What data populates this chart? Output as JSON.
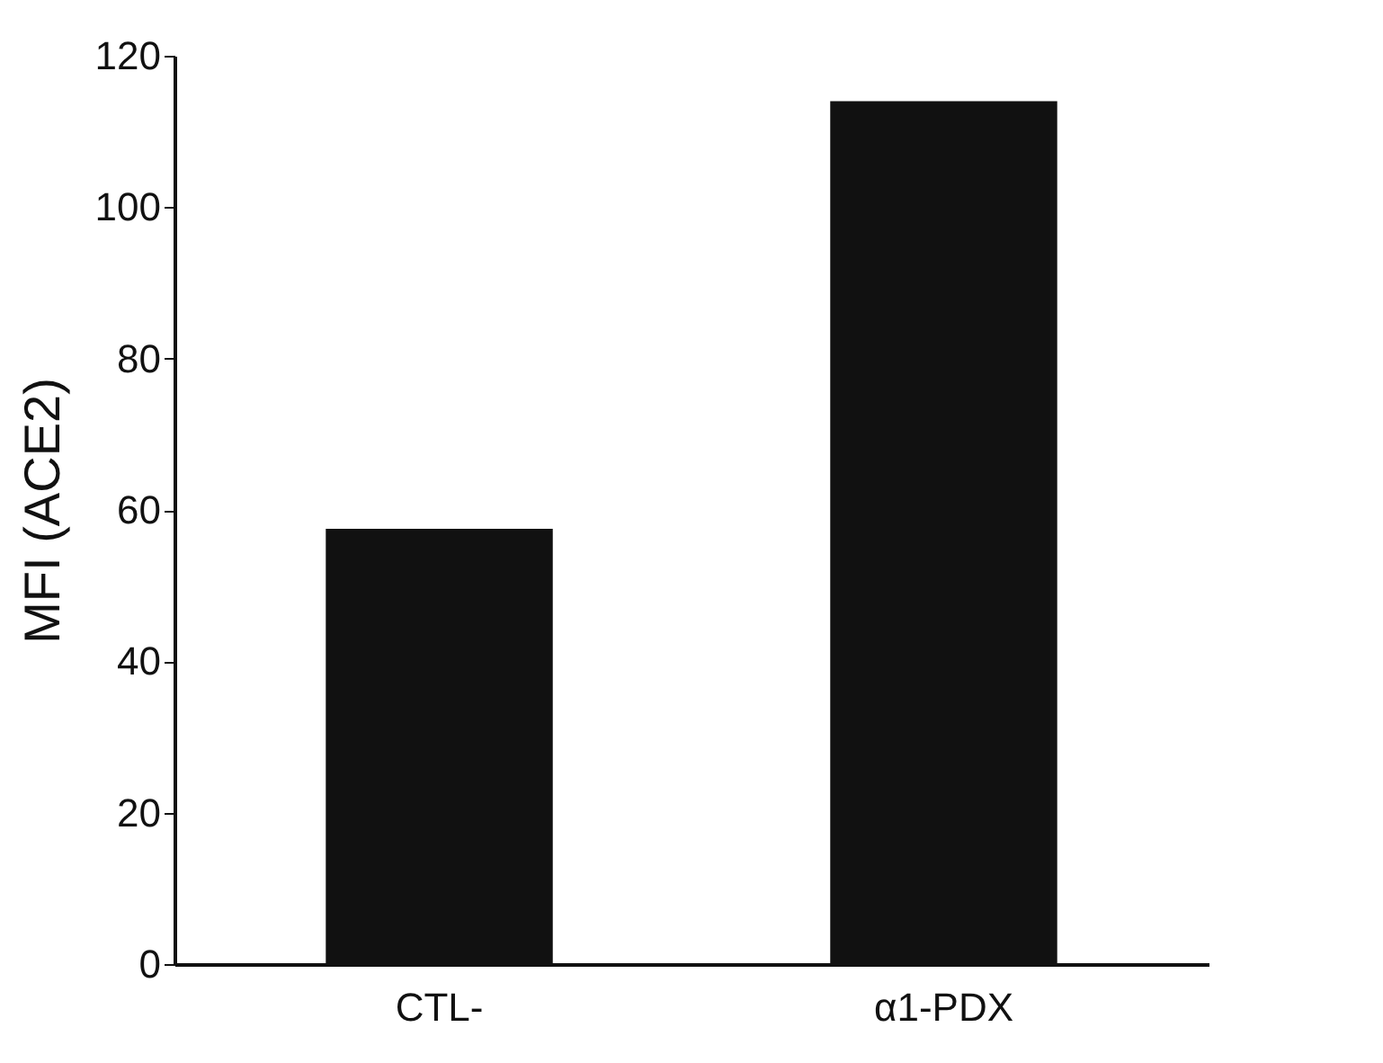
{
  "chart_data": {
    "type": "bar",
    "ylabel": "MFI (ACE2)",
    "categories": [
      "CTL-",
      "α1-PDX"
    ],
    "values": [
      57.5,
      114
    ],
    "color": "#111111",
    "ylim": [
      0,
      120
    ],
    "yticks": [
      0,
      20,
      40,
      60,
      80,
      100,
      120
    ],
    "grid": false
  }
}
